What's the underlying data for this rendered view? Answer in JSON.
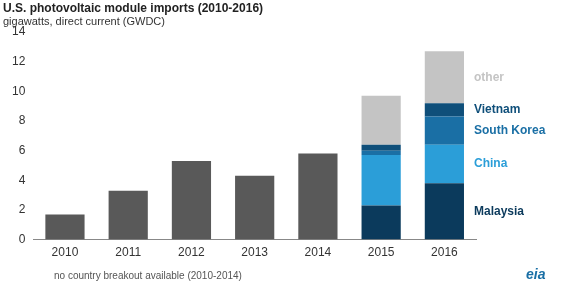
{
  "chart_data": {
    "type": "bar",
    "title": "U.S. photovoltaic module imports (2010-2016)",
    "subtitle": "gigawatts, direct current (GWDC)",
    "annotations": [
      "no country breakout available (2010-2014)"
    ],
    "logo": "eia",
    "categories": [
      "2010",
      "2011",
      "2012",
      "2013",
      "2014",
      "2015",
      "2016"
    ],
    "stacked": true,
    "grid": false,
    "ylim": [
      0,
      14
    ],
    "yticks": [
      0,
      2,
      4,
      6,
      8,
      10,
      12,
      14
    ],
    "series": [
      {
        "color": "#595959",
        "values": [
          1.7,
          3.3,
          5.3,
          4.3,
          5.8,
          null,
          null
        ]
      },
      {
        "name": "Malaysia",
        "color": "#0b3a5c",
        "values": [
          null,
          null,
          null,
          null,
          null,
          2.3,
          3.8
        ]
      },
      {
        "name": "China",
        "color": "#2b9ed8",
        "values": [
          null,
          null,
          null,
          null,
          null,
          3.4,
          2.6
        ]
      },
      {
        "name": "South Korea",
        "color": "#1a6fa5",
        "values": [
          null,
          null,
          null,
          null,
          null,
          0.3,
          1.9
        ]
      },
      {
        "name": "Vietnam",
        "color": "#0f4f7a",
        "values": [
          null,
          null,
          null,
          null,
          null,
          0.4,
          0.9
        ]
      },
      {
        "name": "other",
        "color": "#c4c4c4",
        "values": [
          null,
          null,
          null,
          null,
          null,
          3.3,
          3.5
        ]
      }
    ]
  }
}
